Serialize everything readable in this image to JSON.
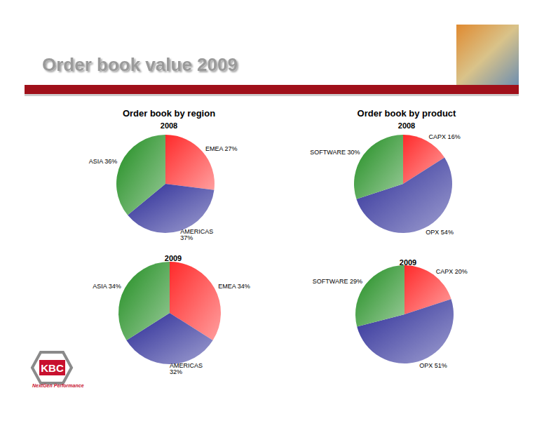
{
  "title": "Order book value 2009",
  "logo": {
    "text": "KBC",
    "tagline": "NextGen Performance"
  },
  "chart_data": [
    {
      "type": "pie",
      "title": "Order book by region",
      "subtitle": "2008",
      "categories": [
        "EMEA",
        "AMERICAS",
        "ASIA"
      ],
      "values": [
        27,
        37,
        36
      ],
      "value_labels": [
        "EMEA 27%",
        "AMERICAS\n37%",
        "ASIA 36%"
      ],
      "colors": [
        "#ff2a2a",
        "#2a2a96",
        "#1e8c1e"
      ],
      "data_labels": true
    },
    {
      "type": "pie",
      "title": "Order book by product",
      "subtitle": "2008",
      "categories": [
        "CAPX",
        "OPX",
        "SOFTWARE"
      ],
      "values": [
        16,
        54,
        30
      ],
      "value_labels": [
        "CAPX 16%",
        "OPX 54%",
        "SOFTWARE 30%"
      ],
      "colors": [
        "#ff2a2a",
        "#2a2a96",
        "#1e8c1e"
      ],
      "data_labels": true
    },
    {
      "type": "pie",
      "subtitle": "2009",
      "categories": [
        "EMEA",
        "AMERICAS",
        "ASIA"
      ],
      "values": [
        34,
        32,
        34
      ],
      "value_labels": [
        "EMEA 34%",
        "AMERICAS\n32%",
        "ASIA 34%"
      ],
      "colors": [
        "#ff2a2a",
        "#2a2a96",
        "#1e8c1e"
      ],
      "data_labels": true
    },
    {
      "type": "pie",
      "subtitle": "2009",
      "categories": [
        "CAPX",
        "OPX",
        "SOFTWARE"
      ],
      "values": [
        20,
        51,
        29
      ],
      "value_labels": [
        "CAPX 20%",
        "OPX 51%",
        "SOFTWARE 29%"
      ],
      "colors": [
        "#ff2a2a",
        "#2a2a96",
        "#1e8c1e"
      ],
      "data_labels": true
    }
  ]
}
